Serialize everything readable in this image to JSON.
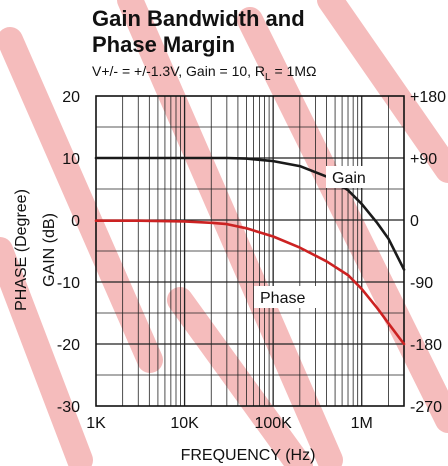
{
  "chart_data": {
    "type": "line",
    "title_line1": "Gain Bandwidth and",
    "title_line2": "Phase Margin",
    "subtitle_prefix": "V+/- = +/-1.3V, Gain = 10, R",
    "subtitle_sub": "L",
    "subtitle_suffix": " = 1MΩ",
    "xlabel": "FREQUENCY (Hz)",
    "ylabel_left_gain": "GAIN (dB)",
    "ylabel_left_phase": "PHASE (Degree)",
    "x_scale": "log",
    "xlim": [
      1000,
      3000000
    ],
    "x_ticks": [
      {
        "value": 1000,
        "label": "1K"
      },
      {
        "value": 10000,
        "label": "10K"
      },
      {
        "value": 100000,
        "label": "100K"
      },
      {
        "value": 1000000,
        "label": "1M"
      }
    ],
    "ylim_gain": [
      -30,
      20
    ],
    "y_ticks_gain": [
      {
        "value": 20,
        "label": "20"
      },
      {
        "value": 10,
        "label": "10"
      },
      {
        "value": 0,
        "label": "0"
      },
      {
        "value": -10,
        "label": "-10"
      },
      {
        "value": -20,
        "label": "-20"
      },
      {
        "value": -30,
        "label": "-30"
      }
    ],
    "ylim_phase": [
      -270,
      180
    ],
    "y_ticks_phase": [
      {
        "value": 180,
        "label": "+180"
      },
      {
        "value": 90,
        "label": "+90"
      },
      {
        "value": 0,
        "label": "0"
      },
      {
        "value": -90,
        "label": "-90"
      },
      {
        "value": -180,
        "label": "-180"
      },
      {
        "value": -270,
        "label": "-270"
      }
    ],
    "grid": true,
    "series": [
      {
        "name": "Gain",
        "axis": "gain",
        "color": "#1a1a1a",
        "x": [
          1000,
          3000,
          10000,
          30000,
          50000,
          100000,
          200000,
          400000,
          700000,
          1000000,
          1500000,
          2000000,
          3000000
        ],
        "y": [
          10,
          10,
          10,
          10,
          9.9,
          9.5,
          8.7,
          7,
          4.8,
          2.6,
          -0.5,
          -3,
          -8
        ]
      },
      {
        "name": "Phase",
        "axis": "phase",
        "color": "#cc2222",
        "x": [
          1000,
          3000,
          10000,
          20000,
          30000,
          50000,
          100000,
          200000,
          400000,
          700000,
          1000000,
          1500000,
          2000000,
          3000000
        ],
        "y": [
          -1,
          -1,
          -2,
          -4,
          -6,
          -12,
          -24,
          -40,
          -60,
          -80,
          -100,
          -128,
          -150,
          -180
        ]
      }
    ]
  }
}
